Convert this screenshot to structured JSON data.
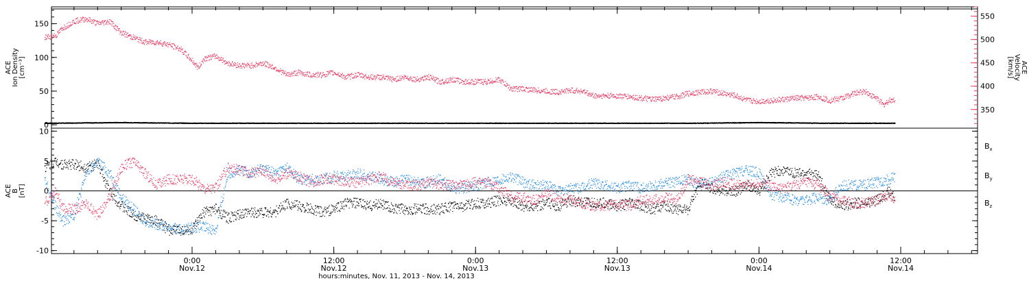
{
  "chart_data": {
    "type": "scatter",
    "time_axis": {
      "label": "hours:minutes, Nov. 11, 2013 - Nov. 14, 2013",
      "hour_range": [
        0,
        72
      ],
      "ticks": [
        {
          "hour": 12,
          "time": "0:00",
          "date": "Nov.12"
        },
        {
          "hour": 24,
          "time": "12:00",
          "date": "Nov.12"
        },
        {
          "hour": 36,
          "time": "0:00",
          "date": "Nov.13"
        },
        {
          "hour": 48,
          "time": "12:00",
          "date": "Nov.13"
        },
        {
          "hour": 60,
          "time": "0:00",
          "date": "Nov.14"
        },
        {
          "hour": 72,
          "time": "12:00",
          "date": "Nov.14"
        }
      ]
    },
    "panels": [
      {
        "name": "plasma",
        "left_axis": {
          "title_lines": [
            "ACE",
            "Ion Density",
            "[cm⁻³]"
          ],
          "range": [
            -5,
            175
          ],
          "ticks": [
            0,
            50,
            100,
            150
          ]
        },
        "right_axis": {
          "title_lines": [
            "ACE",
            "Velocity",
            "[km/s]"
          ],
          "range": [
            310,
            570
          ],
          "ticks": [
            350,
            400,
            450,
            500,
            550
          ],
          "color": "#e8365f"
        },
        "series": [
          {
            "axis": "left",
            "color": "#000000",
            "x": [
              -0.5,
              6,
              12,
              18,
              24,
              30,
              36,
              42,
              48,
              54,
              60,
              66,
              71.5
            ],
            "y": [
              3,
              4,
              3,
              3,
              3,
              3,
              3,
              3,
              3,
              3,
              4,
              3,
              3
            ]
          },
          {
            "axis": "right",
            "color": "#e8365f",
            "x": [
              -0.5,
              0.5,
              1,
              2,
              3,
              4,
              5,
              6,
              7,
              8,
              9,
              10,
              11,
              12,
              12.5,
              13,
              14,
              15,
              16,
              17,
              18,
              19,
              20,
              21,
              22,
              23,
              24,
              25,
              26,
              27,
              28,
              29,
              30,
              31,
              32,
              33,
              34,
              35,
              36,
              37,
              38,
              39,
              40,
              41,
              42,
              43,
              44,
              45,
              46,
              47,
              48,
              49,
              50,
              51,
              52,
              53,
              54,
              55,
              56,
              57,
              58,
              59,
              60,
              61,
              62,
              63,
              64,
              65,
              66,
              67,
              68,
              69,
              69.5,
              70,
              70.5,
              71,
              71.5
            ],
            "y": [
              505,
              510,
              525,
              540,
              545,
              535,
              540,
              515,
              505,
              495,
              495,
              490,
              480,
              455,
              440,
              460,
              465,
              450,
              445,
              445,
              450,
              440,
              425,
              430,
              425,
              425,
              430,
              420,
              425,
              420,
              420,
              415,
              420,
              415,
              420,
              410,
              415,
              410,
              410,
              410,
              415,
              395,
              395,
              392,
              390,
              388,
              392,
              390,
              380,
              380,
              380,
              378,
              375,
              372,
              375,
              378,
              385,
              388,
              390,
              385,
              380,
              370,
              368,
              370,
              372,
              375,
              375,
              378,
              370,
              375,
              385,
              390,
              380,
              375,
              360,
              370,
              372
            ]
          }
        ]
      },
      {
        "name": "magnetic field",
        "left_axis": {
          "title_lines": [
            "ACE",
            "B",
            "[nT]"
          ],
          "range": [
            -10.5,
            10.5
          ],
          "ticks": [
            -10,
            -5,
            0,
            5,
            10
          ]
        },
        "series": [
          {
            "name": "Bx",
            "label": "B",
            "subscript": "x",
            "color": "#000000",
            "x": [
              -0.5,
              0.5,
              1,
              2,
              3,
              4,
              5,
              6,
              7,
              8,
              9,
              10,
              11,
              12,
              13,
              14,
              15,
              16,
              17,
              18,
              19,
              20,
              21,
              22,
              23,
              24,
              25,
              26,
              27,
              28,
              29,
              30,
              31,
              32,
              33,
              34,
              35,
              36,
              37,
              38,
              39,
              40,
              41,
              42,
              43,
              44,
              45,
              46,
              47,
              48,
              49,
              50,
              51,
              52,
              53,
              54,
              55,
              56,
              57,
              58,
              59,
              60,
              61,
              62,
              63,
              64,
              65,
              66,
              67,
              68,
              69,
              70,
              71,
              71.5
            ],
            "y": [
              4,
              5,
              4.5,
              4.5,
              4,
              4.5,
              0,
              -2.5,
              -4,
              -4.5,
              -5,
              -6.5,
              -6.5,
              -6.5,
              -3.5,
              -3,
              -4.5,
              -4,
              -3.5,
              -3.5,
              -3.5,
              -2,
              -2.5,
              -3,
              -3.5,
              -3,
              -2,
              -2,
              -2.5,
              -2,
              -3,
              -3,
              -3,
              -3,
              -3,
              -2.5,
              -2.5,
              -2,
              -2,
              -1.5,
              -1.5,
              -2.5,
              -2.5,
              -2,
              -2.5,
              -1.5,
              -2,
              -2,
              -2,
              -2.5,
              -2,
              -2.5,
              -3,
              -2.5,
              -3,
              -3,
              1.5,
              0.5,
              0,
              0,
              1,
              0,
              3,
              3.5,
              3,
              3,
              2.5,
              -1.5,
              -2.5,
              -2,
              -2,
              -1.5,
              0,
              -1.5
            ]
          },
          {
            "name": "By",
            "label": "B",
            "subscript": "y",
            "color": "#1e88e5",
            "x": [
              -0.5,
              0.5,
              1,
              2,
              3,
              4,
              5,
              6,
              7,
              8,
              9,
              10,
              11,
              12,
              13,
              14,
              15,
              16,
              17,
              18,
              19,
              20,
              21,
              22,
              23,
              24,
              25,
              26,
              27,
              28,
              29,
              30,
              31,
              32,
              33,
              34,
              35,
              36,
              37,
              38,
              39,
              40,
              41,
              42,
              43,
              44,
              45,
              46,
              47,
              48,
              49,
              50,
              51,
              52,
              53,
              54,
              55,
              56,
              57,
              58,
              59,
              60,
              61,
              62,
              63,
              64,
              65,
              66,
              67,
              68,
              69,
              70,
              71,
              71.5
            ],
            "y": [
              2,
              -3,
              -5,
              -4,
              3,
              5,
              3,
              -1,
              -3,
              -5,
              -5.5,
              -6,
              -6.5,
              -6,
              -6,
              -6.5,
              3,
              3.5,
              3,
              4,
              3,
              4,
              2,
              2,
              2,
              2.5,
              2.5,
              3,
              2.5,
              2,
              1.5,
              2,
              1.5,
              1.5,
              2,
              0.5,
              0.5,
              1,
              1.5,
              2,
              2.5,
              1.5,
              1,
              1,
              0,
              0.5,
              0.5,
              1.5,
              1,
              0.5,
              1,
              0.5,
              1,
              1.5,
              1.5,
              2,
              1,
              1.5,
              2.5,
              3,
              3.5,
              3,
              -0.5,
              -1,
              -1.5,
              -1.5,
              -1,
              -1.5,
              1,
              1,
              1,
              1.5,
              2,
              2.5
            ]
          },
          {
            "name": "Bz",
            "label": "B",
            "subscript": "z",
            "color": "#e8365f",
            "x": [
              -0.5,
              0.5,
              1,
              2,
              3,
              4,
              5,
              6,
              7,
              8,
              9,
              10,
              11,
              12,
              13,
              14,
              15,
              16,
              17,
              18,
              19,
              20,
              21,
              22,
              23,
              24,
              25,
              26,
              27,
              28,
              29,
              30,
              31,
              32,
              33,
              34,
              35,
              36,
              37,
              38,
              39,
              40,
              41,
              42,
              43,
              44,
              45,
              46,
              47,
              48,
              49,
              50,
              51,
              52,
              53,
              54,
              55,
              56,
              57,
              58,
              59,
              60,
              61,
              62,
              63,
              64,
              65,
              66,
              67,
              68,
              69,
              70,
              71,
              71.5
            ],
            "y": [
              -2,
              0,
              -3,
              -3,
              -2,
              -4,
              -1,
              4,
              5,
              3,
              1,
              2,
              2,
              2,
              0.5,
              0.5,
              4,
              3.5,
              3,
              3.5,
              2,
              3,
              2.5,
              1.5,
              2,
              2,
              1.5,
              1.5,
              2,
              2.5,
              1.5,
              1,
              1,
              1.5,
              1,
              1,
              1,
              1.5,
              1.5,
              0.5,
              -1,
              -1,
              -1.5,
              -0.5,
              -1,
              -1.5,
              -2,
              -2.5,
              -2.5,
              -2,
              -2.5,
              -1.5,
              -1.5,
              -1,
              -1.5,
              2,
              1.5,
              1,
              1.5,
              1,
              1,
              1.5,
              1,
              0.5,
              1,
              1.5,
              1,
              -1,
              -1.5,
              -2,
              -2,
              -1.5,
              -0.5,
              -1.5
            ]
          }
        ]
      }
    ]
  }
}
